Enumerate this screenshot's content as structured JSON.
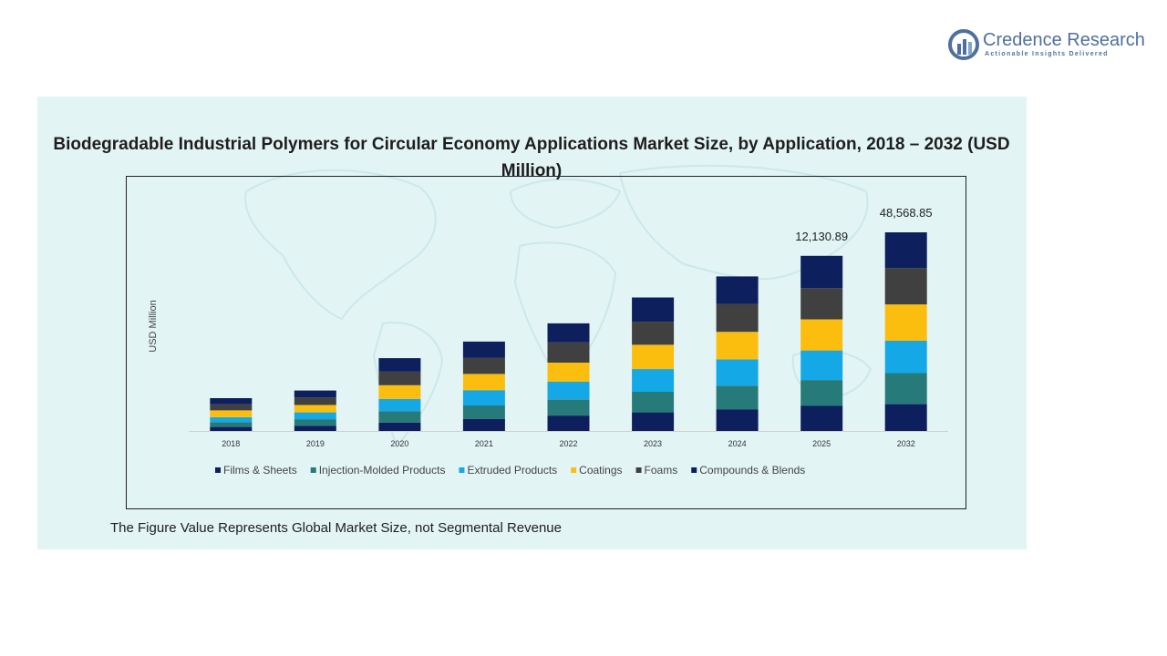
{
  "brand": {
    "name": "Credence Research",
    "tagline": "Actionable Insights Delivered",
    "color": "#4f6f9f"
  },
  "title": "Biodegradable Industrial Polymers for Circular Economy Applications Market Size, by Application, 2018 – 2032 (USD Million)",
  "footnote": "The Figure Value Represents Global Market Size, not Segmental Revenue",
  "chart_data": {
    "type": "bar",
    "stacked": true,
    "title": "Biodegradable Industrial Polymers for Circular Economy Applications Market Size, by Application, 2018 – 2032 (USD Million)",
    "ylabel": "USD Million",
    "xlabel": "",
    "grid": false,
    "legend_position": "bottom",
    "categories": [
      "2018",
      "2019",
      "2020",
      "2021",
      "2022",
      "2023",
      "2024",
      "2025",
      "2032"
    ],
    "series": [
      {
        "name": "Films & Sheets",
        "color": "#0d1f5c",
        "values": [
          500,
          650,
          1050,
          1500,
          1900,
          2300,
          2650,
          3100,
          3350
        ]
      },
      {
        "name": "Injection-Molded Products",
        "color": "#277a7a",
        "values": [
          600,
          800,
          1400,
          1650,
          2000,
          2550,
          2950,
          3200,
          3800
        ]
      },
      {
        "name": "Extruded Products",
        "color": "#14a9e6",
        "values": [
          600,
          850,
          1500,
          1900,
          2200,
          2800,
          3250,
          3650,
          4000
        ]
      },
      {
        "name": "Coatings",
        "color": "#fbbe0f",
        "values": [
          850,
          900,
          1700,
          2000,
          2350,
          3000,
          3400,
          3850,
          4500
        ]
      },
      {
        "name": "Foams",
        "color": "#404040",
        "values": [
          750,
          950,
          1700,
          2000,
          2500,
          2850,
          3450,
          3850,
          4500
        ]
      },
      {
        "name": "Compounds & Blends",
        "color": "#0d1f5c",
        "values": [
          750,
          850,
          1650,
          2000,
          2350,
          3000,
          3400,
          4000,
          4400
        ]
      }
    ],
    "annotations": [
      {
        "category": "2025",
        "label": "12,130.89"
      },
      {
        "category": "2032",
        "label": "48,568.85"
      }
    ]
  }
}
